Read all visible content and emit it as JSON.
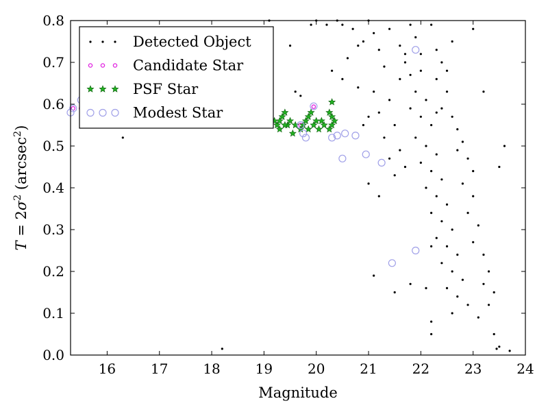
{
  "chart_data": {
    "type": "scatter",
    "title": "",
    "xlabel": "Magnitude",
    "ylabel": {
      "prefix": "T",
      "eq": " = 2",
      "sigma": "σ",
      "sup": "2",
      "unit_open": " (arcsec",
      "unit_sup": "2",
      "unit_close": ")"
    },
    "xlim": [
      15.3,
      24
    ],
    "ylim": [
      0,
      0.8
    ],
    "xticks": [
      16,
      17,
      18,
      19,
      20,
      21,
      22,
      23,
      24
    ],
    "yticks": [
      0.0,
      0.1,
      0.2,
      0.3,
      0.4,
      0.5,
      0.6,
      0.7,
      0.8
    ],
    "ytick_labels": [
      "0.0",
      "0.1",
      "0.2",
      "0.3",
      "0.4",
      "0.5",
      "0.6",
      "0.7",
      "0.8"
    ],
    "grid": false,
    "legend_position": "top-left",
    "series": [
      {
        "name": "Detected Object",
        "marker": "dot",
        "color": "#000000",
        "points": [
          [
            15.5,
            0.74
          ],
          [
            16.3,
            0.52
          ],
          [
            18.2,
            0.015
          ],
          [
            19.1,
            0.8
          ],
          [
            19.5,
            0.74
          ],
          [
            19.6,
            0.63
          ],
          [
            19.7,
            0.62
          ],
          [
            19.9,
            0.79
          ],
          [
            20.0,
            0.8
          ],
          [
            20.2,
            0.79
          ],
          [
            20.4,
            0.8
          ],
          [
            20.5,
            0.79
          ],
          [
            20.7,
            0.78
          ],
          [
            20.9,
            0.75
          ],
          [
            20.6,
            0.71
          ],
          [
            20.3,
            0.68
          ],
          [
            20.5,
            0.66
          ],
          [
            20.8,
            0.64
          ],
          [
            21.0,
            0.8
          ],
          [
            21.1,
            0.77
          ],
          [
            21.2,
            0.73
          ],
          [
            21.3,
            0.69
          ],
          [
            21.1,
            0.63
          ],
          [
            21.4,
            0.61
          ],
          [
            21.2,
            0.58
          ],
          [
            21.0,
            0.57
          ],
          [
            21.5,
            0.55
          ],
          [
            21.3,
            0.52
          ],
          [
            21.6,
            0.49
          ],
          [
            21.4,
            0.47
          ],
          [
            21.7,
            0.45
          ],
          [
            21.5,
            0.43
          ],
          [
            21.8,
            0.79
          ],
          [
            21.9,
            0.76
          ],
          [
            22.0,
            0.72
          ],
          [
            21.7,
            0.7
          ],
          [
            21.6,
            0.66
          ],
          [
            21.9,
            0.63
          ],
          [
            22.1,
            0.61
          ],
          [
            21.8,
            0.59
          ],
          [
            22.0,
            0.57
          ],
          [
            22.2,
            0.55
          ],
          [
            21.9,
            0.52
          ],
          [
            22.1,
            0.5
          ],
          [
            22.3,
            0.48
          ],
          [
            22.0,
            0.46
          ],
          [
            22.2,
            0.44
          ],
          [
            22.4,
            0.42
          ],
          [
            22.1,
            0.4
          ],
          [
            22.3,
            0.38
          ],
          [
            22.5,
            0.36
          ],
          [
            22.2,
            0.34
          ],
          [
            22.4,
            0.32
          ],
          [
            22.6,
            0.3
          ],
          [
            22.3,
            0.28
          ],
          [
            22.5,
            0.26
          ],
          [
            22.7,
            0.24
          ],
          [
            22.4,
            0.22
          ],
          [
            22.6,
            0.2
          ],
          [
            22.8,
            0.18
          ],
          [
            22.5,
            0.16
          ],
          [
            22.7,
            0.14
          ],
          [
            22.9,
            0.12
          ],
          [
            22.6,
            0.1
          ],
          [
            22.2,
            0.08
          ],
          [
            22.2,
            0.05
          ],
          [
            22.3,
            0.66
          ],
          [
            22.5,
            0.63
          ],
          [
            22.4,
            0.59
          ],
          [
            22.6,
            0.57
          ],
          [
            22.7,
            0.54
          ],
          [
            22.8,
            0.51
          ],
          [
            22.9,
            0.47
          ],
          [
            23.0,
            0.44
          ],
          [
            22.8,
            0.41
          ],
          [
            23.0,
            0.38
          ],
          [
            22.9,
            0.34
          ],
          [
            23.1,
            0.31
          ],
          [
            23.0,
            0.27
          ],
          [
            23.2,
            0.24
          ],
          [
            23.3,
            0.2
          ],
          [
            23.2,
            0.17
          ],
          [
            23.4,
            0.15
          ],
          [
            23.3,
            0.12
          ],
          [
            23.1,
            0.09
          ],
          [
            23.4,
            0.05
          ],
          [
            23.5,
            0.02
          ],
          [
            23.45,
            0.015
          ],
          [
            23.7,
            0.01
          ],
          [
            23.6,
            0.5
          ],
          [
            23.5,
            0.45
          ],
          [
            23.2,
            0.63
          ],
          [
            23.0,
            0.78
          ],
          [
            22.2,
            0.79
          ],
          [
            22.6,
            0.75
          ],
          [
            22.4,
            0.7
          ],
          [
            21.1,
            0.19
          ],
          [
            21.5,
            0.15
          ],
          [
            21.8,
            0.17
          ],
          [
            22.1,
            0.16
          ],
          [
            22.2,
            0.26
          ],
          [
            21.2,
            0.38
          ],
          [
            21.0,
            0.41
          ],
          [
            20.9,
            0.55
          ],
          [
            21.6,
            0.74
          ],
          [
            21.8,
            0.67
          ],
          [
            22.3,
            0.73
          ],
          [
            22.5,
            0.68
          ],
          [
            20.8,
            0.74
          ],
          [
            21.4,
            0.78
          ],
          [
            21.7,
            0.72
          ],
          [
            22.0,
            0.68
          ],
          [
            22.3,
            0.58
          ],
          [
            22.7,
            0.49
          ]
        ]
      },
      {
        "name": "Candidate Star",
        "marker": "ring-small",
        "color": "#e020e0",
        "points": [
          [
            15.35,
            0.59
          ],
          [
            15.5,
            0.59
          ],
          [
            19.7,
            0.55
          ],
          [
            19.95,
            0.594
          ]
        ]
      },
      {
        "name": "PSF Star",
        "marker": "star",
        "color": "#1a9e1a",
        "points": [
          [
            19.2,
            0.56
          ],
          [
            19.25,
            0.55
          ],
          [
            19.3,
            0.54
          ],
          [
            19.35,
            0.57
          ],
          [
            19.4,
            0.58
          ],
          [
            19.45,
            0.55
          ],
          [
            19.5,
            0.56
          ],
          [
            19.55,
            0.53
          ],
          [
            19.6,
            0.55
          ],
          [
            19.3,
            0.56
          ],
          [
            19.4,
            0.55
          ],
          [
            19.75,
            0.55
          ],
          [
            19.8,
            0.56
          ],
          [
            19.85,
            0.57
          ],
          [
            19.9,
            0.58
          ],
          [
            19.95,
            0.55
          ],
          [
            20.0,
            0.56
          ],
          [
            20.05,
            0.54
          ],
          [
            20.1,
            0.56
          ],
          [
            20.15,
            0.55
          ],
          [
            20.25,
            0.54
          ],
          [
            20.3,
            0.55
          ],
          [
            20.35,
            0.56
          ],
          [
            20.3,
            0.57
          ],
          [
            20.25,
            0.58
          ],
          [
            20.3,
            0.605
          ],
          [
            19.85,
            0.54
          ],
          [
            19.7,
            0.54
          ]
        ]
      },
      {
        "name": "Modest Star",
        "marker": "ring-large",
        "color": "#a0a0e8",
        "points": [
          [
            15.3,
            0.58
          ],
          [
            15.35,
            0.59
          ],
          [
            15.5,
            0.61
          ],
          [
            15.7,
            0.61
          ],
          [
            15.9,
            0.58
          ],
          [
            16.05,
            0.58
          ],
          [
            19.75,
            0.53
          ],
          [
            19.8,
            0.52
          ],
          [
            20.3,
            0.52
          ],
          [
            20.4,
            0.525
          ],
          [
            20.55,
            0.53
          ],
          [
            20.75,
            0.525
          ],
          [
            20.5,
            0.47
          ],
          [
            20.95,
            0.48
          ],
          [
            21.25,
            0.46
          ],
          [
            21.45,
            0.22
          ],
          [
            21.9,
            0.25
          ],
          [
            21.9,
            0.73
          ],
          [
            19.95,
            0.595
          ],
          [
            19.7,
            0.55
          ]
        ]
      }
    ]
  }
}
